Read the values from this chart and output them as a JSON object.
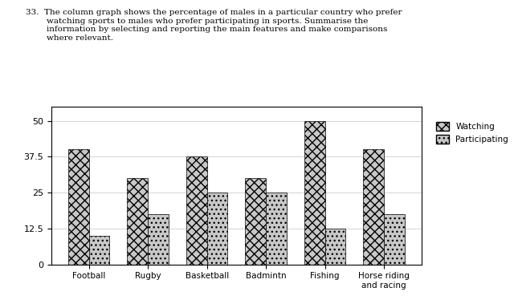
{
  "categories": [
    "Football",
    "Rugby",
    "Basketball",
    "Badmintn",
    "Fishing",
    "Horse riding\nand racing"
  ],
  "watching": [
    40,
    30,
    37.5,
    30,
    50,
    40
  ],
  "participating": [
    10,
    17.5,
    25,
    25,
    12.5,
    17.5
  ],
  "yticks": [
    0,
    12.5,
    25,
    37.5,
    50
  ],
  "ylabel": "",
  "legend_labels": [
    "Watching",
    "Participating"
  ],
  "bar_width": 0.35,
  "watching_hatch": "xxx",
  "participating_hatch": "...",
  "bar_color": "#a0a0a0",
  "title_text": "33.  The column graph shows the percentage of males in a particular country who prefer\n        watching sports to males who prefer participating in sports. Summarise the\n        information by selecting and reporting the main features and make comparisons\n        where relevant.",
  "fig_width": 6.4,
  "fig_height": 3.79,
  "dpi": 100
}
